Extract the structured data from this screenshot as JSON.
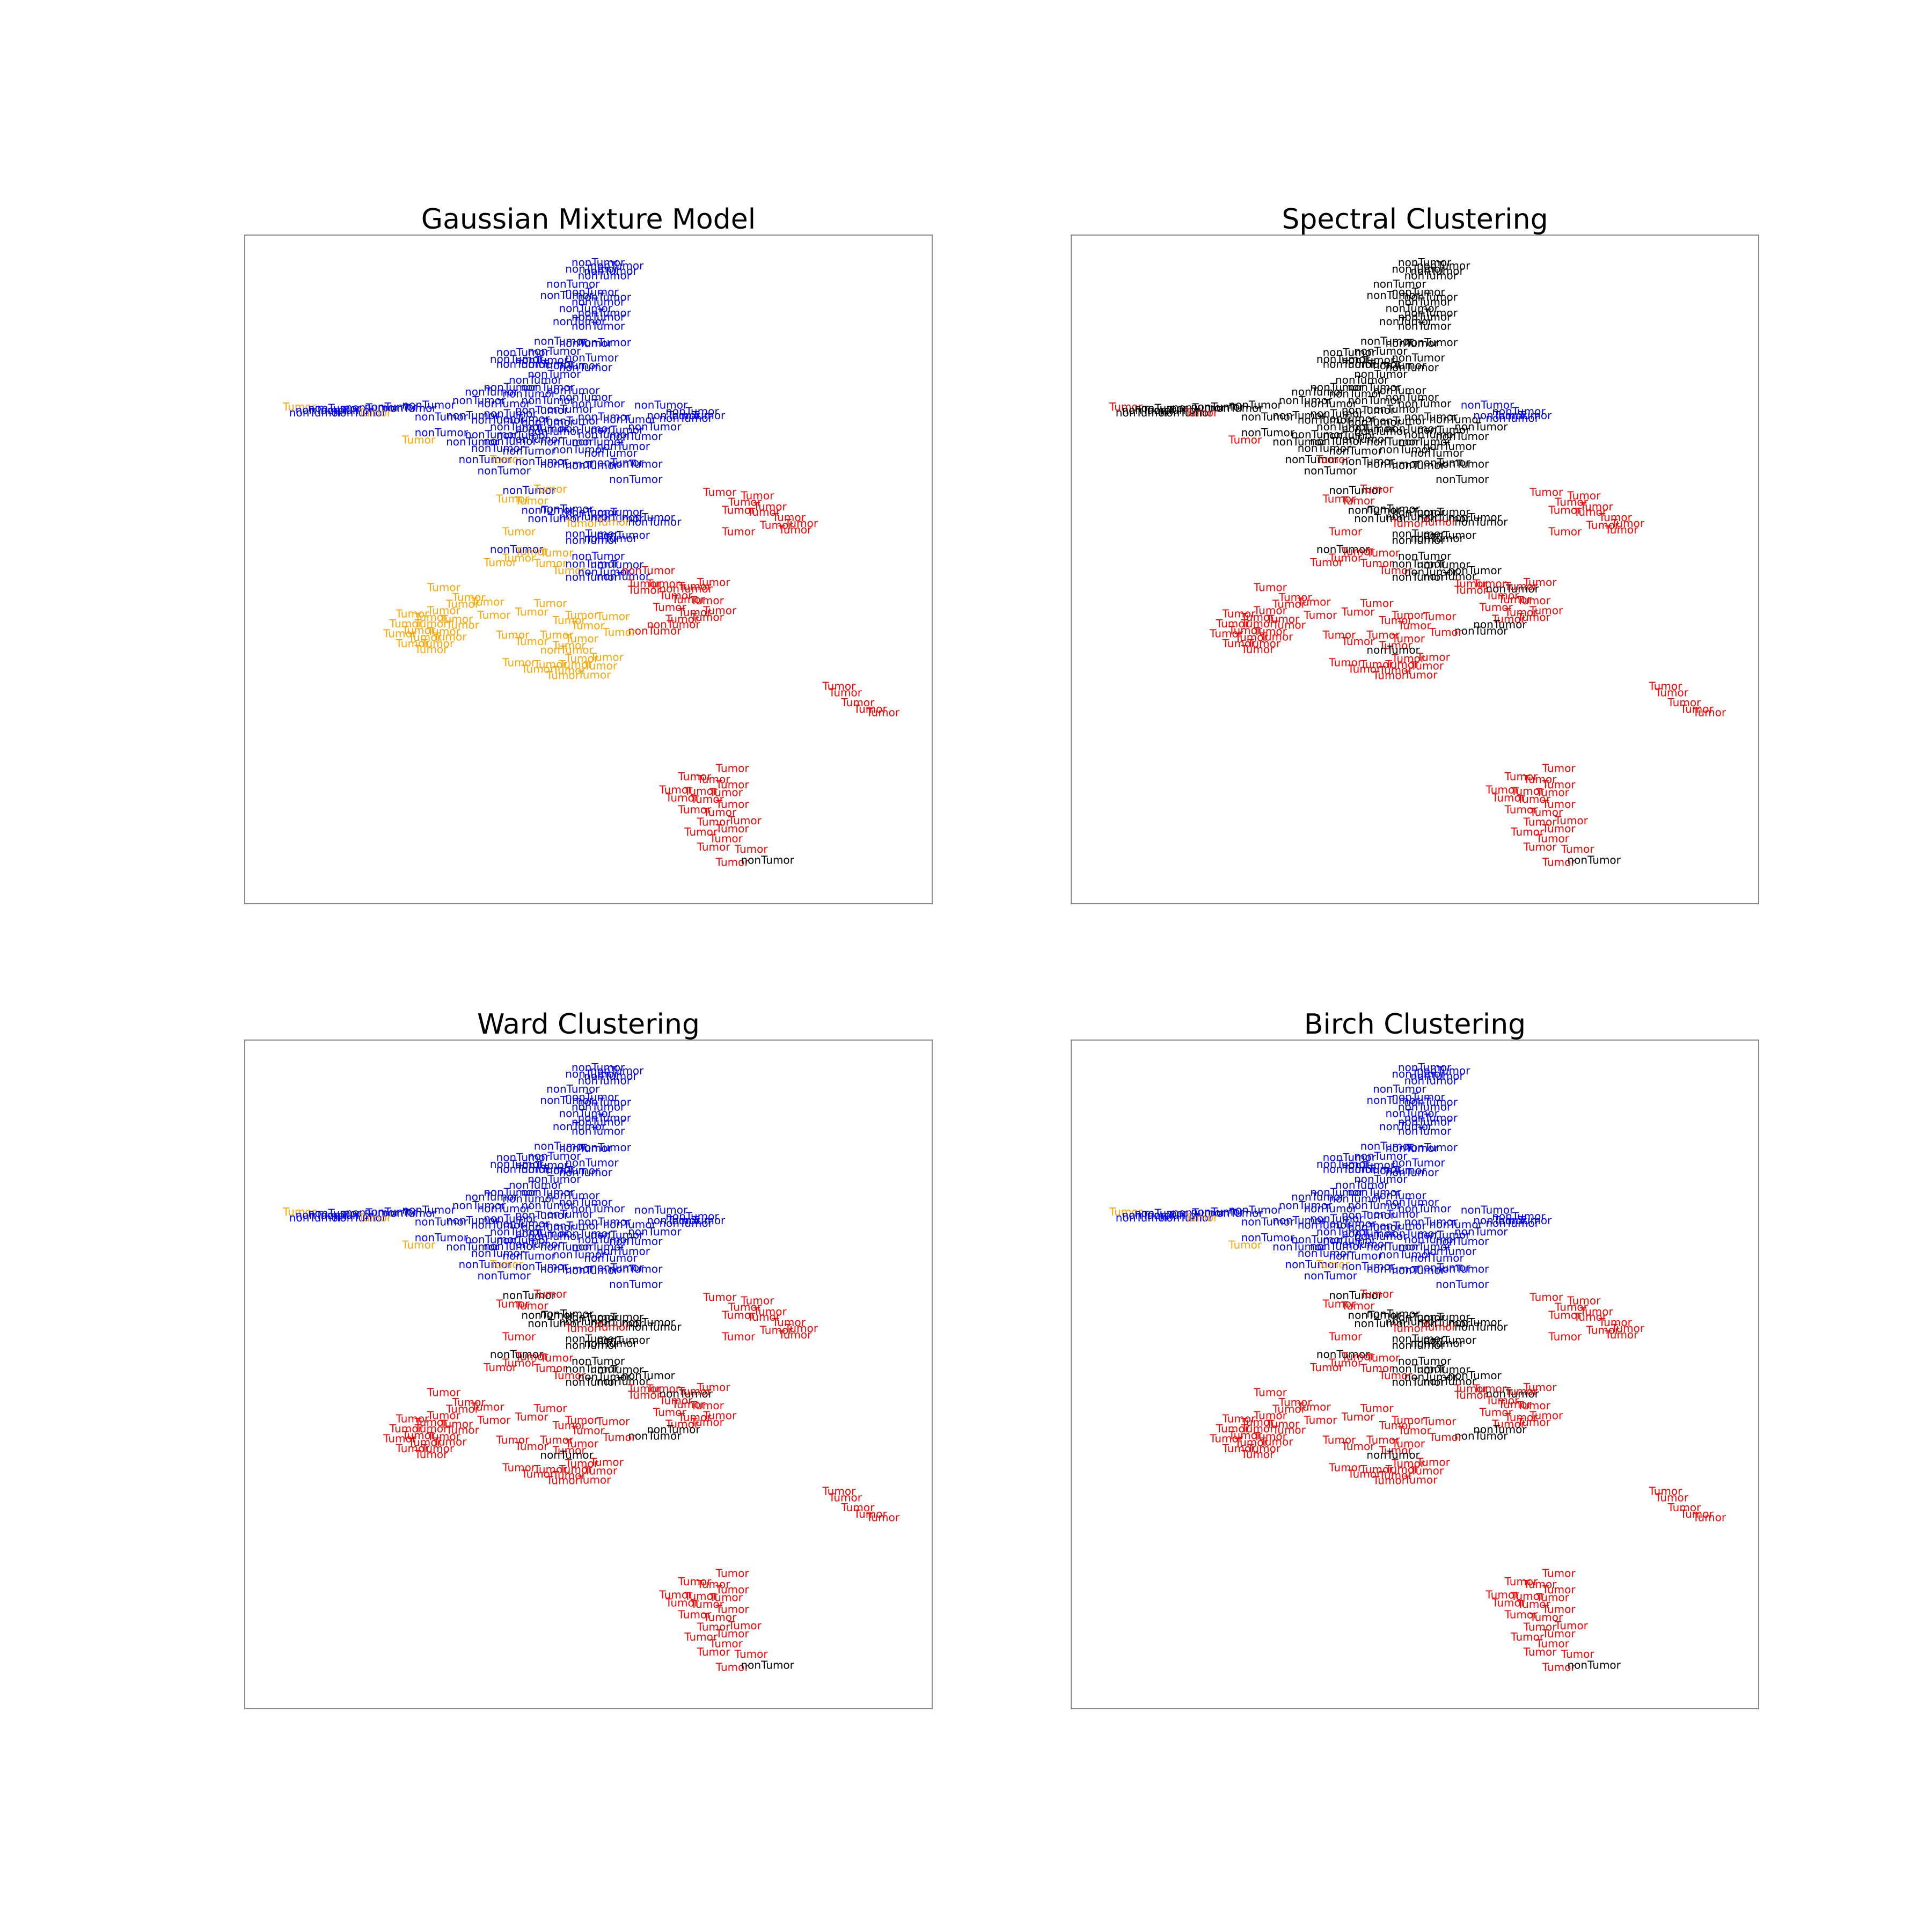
{
  "figure": {
    "background": "#ffffff"
  },
  "colors": {
    "Tumor_dark": "#ff0000",
    "Tumor_amber": "#ffa500",
    "nonTumor_blue": "#0000ff",
    "nonTumor_dark": "#000000"
  },
  "chart_data": [
    {
      "type": "scatter",
      "title": "Gaussian Mixture Model",
      "xlabel": "",
      "ylabel": "",
      "xlim": [
        0,
        100
      ],
      "ylim": [
        0,
        100
      ],
      "axes_visible": false,
      "grid": false,
      "legend": "none",
      "color_map": {
        "Tumor": "#ffa500",
        "nonTumor": "#0000ff",
        "Tumor_far": "#ff0000",
        "nonTumor_far": "#000000"
      },
      "points": []
    },
    {
      "type": "scatter",
      "title": "Spectral Clustering",
      "xlabel": "",
      "ylabel": "",
      "xlim": [
        0,
        100
      ],
      "ylim": [
        0,
        100
      ],
      "axes_visible": false,
      "grid": false,
      "legend": "none",
      "points": []
    },
    {
      "type": "scatter",
      "title": "Ward Clustering",
      "xlabel": "",
      "ylabel": "",
      "xlim": [
        0,
        100
      ],
      "ylim": [
        0,
        100
      ],
      "axes_visible": false,
      "grid": false,
      "legend": "none",
      "points": []
    },
    {
      "type": "scatter",
      "title": "Birch Clustering",
      "xlabel": "",
      "ylabel": "",
      "xlim": [
        0,
        100
      ],
      "ylim": [
        0,
        100
      ],
      "axes_visible": false,
      "grid": false,
      "legend": "none",
      "points": []
    }
  ],
  "base_points": [
    {
      "x": 52,
      "y": 96.5,
      "label": "nonTumor"
    },
    {
      "x": 55,
      "y": 96,
      "label": "nonTumor"
    },
    {
      "x": 51,
      "y": 95.5,
      "label": "nonTumor"
    },
    {
      "x": 54,
      "y": 95.2,
      "label": "nonTumor"
    },
    {
      "x": 53,
      "y": 94.5,
      "label": "nonTumor"
    },
    {
      "x": 48,
      "y": 93.2,
      "label": "nonTumor"
    },
    {
      "x": 47,
      "y": 91.5,
      "label": "nonTumor"
    },
    {
      "x": 51,
      "y": 92,
      "label": "nonTumor"
    },
    {
      "x": 53,
      "y": 91.2,
      "label": "nonTumor"
    },
    {
      "x": 52,
      "y": 90.5,
      "label": "nonTumor"
    },
    {
      "x": 50,
      "y": 89.5,
      "label": "nonTumor"
    },
    {
      "x": 53,
      "y": 88.8,
      "label": "nonTumor"
    },
    {
      "x": 52,
      "y": 88.2,
      "label": "nonTumor"
    },
    {
      "x": 49,
      "y": 87.5,
      "label": "nonTumor"
    },
    {
      "x": 52,
      "y": 86.8,
      "label": "nonTumor"
    },
    {
      "x": 46,
      "y": 84.5,
      "label": "nonTumor"
    },
    {
      "x": 50,
      "y": 84.2,
      "label": "nonTumor"
    },
    {
      "x": 53,
      "y": 84.3,
      "label": "nonTumor"
    },
    {
      "x": 40,
      "y": 82.8,
      "label": "nonTumor"
    },
    {
      "x": 45,
      "y": 83,
      "label": "nonTumor"
    },
    {
      "x": 39,
      "y": 81.8,
      "label": "nonTumor"
    },
    {
      "x": 43,
      "y": 81.6,
      "label": "nonTumor"
    },
    {
      "x": 51,
      "y": 82,
      "label": "nonTumor"
    },
    {
      "x": 40,
      "y": 81,
      "label": "nonTumor"
    },
    {
      "x": 44,
      "y": 81,
      "label": "nonTumor"
    },
    {
      "x": 48,
      "y": 80.8,
      "label": "nonTumor"
    },
    {
      "x": 50,
      "y": 80.5,
      "label": "nonTumor"
    },
    {
      "x": 45,
      "y": 79.5,
      "label": "nonTumor"
    },
    {
      "x": 42,
      "y": 78.6,
      "label": "nonTumor"
    },
    {
      "x": 38,
      "y": 77.5,
      "label": "nonTumor"
    },
    {
      "x": 44,
      "y": 77.5,
      "label": "nonTumor"
    },
    {
      "x": 48,
      "y": 77,
      "label": "nonTumor"
    },
    {
      "x": 35,
      "y": 76.8,
      "label": "nonTumor"
    },
    {
      "x": 41,
      "y": 76.5,
      "label": "nonTumor"
    },
    {
      "x": 33,
      "y": 75.5,
      "label": "nonTumor"
    },
    {
      "x": 44,
      "y": 75.5,
      "label": "nonTumor"
    },
    {
      "x": 50,
      "y": 76,
      "label": "nonTumor"
    },
    {
      "x": 52,
      "y": 75,
      "label": "nonTumor"
    },
    {
      "x": 37,
      "y": 75,
      "label": "nonTumor"
    },
    {
      "x": 43,
      "y": 74,
      "label": "nonTumor"
    },
    {
      "x": 47,
      "y": 74.2,
      "label": "nonTumor"
    },
    {
      "x": 38,
      "y": 73.5,
      "label": "nonTumor"
    },
    {
      "x": 6,
      "y": 74.5,
      "label": "Tumor"
    },
    {
      "x": 8,
      "y": 74,
      "label": "nonTumor"
    },
    {
      "x": 10,
      "y": 74.3,
      "label": "nonTumor"
    },
    {
      "x": 7,
      "y": 73.6,
      "label": "nonTumor"
    },
    {
      "x": 12,
      "y": 74,
      "label": "nonTumor"
    },
    {
      "x": 16,
      "y": 74.4,
      "label": "nonTumor"
    },
    {
      "x": 19,
      "y": 74.5,
      "label": "nonTumor"
    },
    {
      "x": 22,
      "y": 74.3,
      "label": "nonTumor"
    },
    {
      "x": 25,
      "y": 74.8,
      "label": "nonTumor"
    },
    {
      "x": 14,
      "y": 73.6,
      "label": "nonTumor"
    },
    {
      "x": 18,
      "y": 73.6,
      "label": "Tumor"
    },
    {
      "x": 27,
      "y": 73,
      "label": "nonTumor"
    },
    {
      "x": 32,
      "y": 73.2,
      "label": "nonTumor"
    },
    {
      "x": 36,
      "y": 72.5,
      "label": "nonTumor"
    },
    {
      "x": 40,
      "y": 72.7,
      "label": "nonTumor"
    },
    {
      "x": 44,
      "y": 72.2,
      "label": "nonTumor"
    },
    {
      "x": 48,
      "y": 72.4,
      "label": "nonTumor"
    },
    {
      "x": 53,
      "y": 73,
      "label": "nonTumor"
    },
    {
      "x": 57,
      "y": 72.6,
      "label": "nonTumor"
    },
    {
      "x": 39,
      "y": 71.5,
      "label": "nonTumor"
    },
    {
      "x": 43,
      "y": 71.2,
      "label": "nonTumor"
    },
    {
      "x": 50,
      "y": 71.2,
      "label": "nonTumor"
    },
    {
      "x": 55,
      "y": 71,
      "label": "nonTumor"
    },
    {
      "x": 61,
      "y": 71.5,
      "label": "nonTumor"
    },
    {
      "x": 27,
      "y": 70.6,
      "label": "nonTumor"
    },
    {
      "x": 35,
      "y": 70.3,
      "label": "nonTumor"
    },
    {
      "x": 40,
      "y": 70.2,
      "label": "nonTumor"
    },
    {
      "x": 45,
      "y": 70.8,
      "label": "nonTumor"
    },
    {
      "x": 53,
      "y": 70.3,
      "label": "nonTumor"
    },
    {
      "x": 58,
      "y": 70,
      "label": "nonTumor"
    },
    {
      "x": 25,
      "y": 69.5,
      "label": "Tumor"
    },
    {
      "x": 32,
      "y": 69.2,
      "label": "nonTumor"
    },
    {
      "x": 38,
      "y": 69.3,
      "label": "nonTumor"
    },
    {
      "x": 42,
      "y": 69.6,
      "label": "nonTumor"
    },
    {
      "x": 47,
      "y": 69.2,
      "label": "nonTumor"
    },
    {
      "x": 52,
      "y": 69.2,
      "label": "nonTumor"
    },
    {
      "x": 56,
      "y": 68.5,
      "label": "nonTumor"
    },
    {
      "x": 36,
      "y": 68.2,
      "label": "nonTumor"
    },
    {
      "x": 41,
      "y": 67.8,
      "label": "nonTumor"
    },
    {
      "x": 49,
      "y": 68,
      "label": "nonTumor"
    },
    {
      "x": 54,
      "y": 67.5,
      "label": "nonTumor"
    },
    {
      "x": 34,
      "y": 66.5,
      "label": "nonTumor"
    },
    {
      "x": 39,
      "y": 66.5,
      "label": "Tumor"
    },
    {
      "x": 43,
      "y": 66.2,
      "label": "nonTumor"
    },
    {
      "x": 47,
      "y": 65.8,
      "label": "nonTumor"
    },
    {
      "x": 51,
      "y": 65.6,
      "label": "nonTumor"
    },
    {
      "x": 55,
      "y": 66,
      "label": "nonTumor"
    },
    {
      "x": 58,
      "y": 65.8,
      "label": "nonTumor"
    },
    {
      "x": 37,
      "y": 64.8,
      "label": "nonTumor"
    },
    {
      "x": 58,
      "y": 63.5,
      "label": "nonTumor"
    },
    {
      "x": 62,
      "y": 74.8,
      "label": "nonTumor"
    },
    {
      "x": 67,
      "y": 73.8,
      "label": "nonTumor"
    },
    {
      "x": 64,
      "y": 73.2,
      "label": "nonTumor"
    },
    {
      "x": 68,
      "y": 73.2,
      "label": "nonTumor"
    },
    {
      "x": 66,
      "y": 72.8,
      "label": "nonTumor"
    },
    {
      "x": 41,
      "y": 61.8,
      "label": "nonTumor"
    },
    {
      "x": 46,
      "y": 62,
      "label": "Tumor"
    },
    {
      "x": 40,
      "y": 60.5,
      "label": "Tumor"
    },
    {
      "x": 43,
      "y": 60.2,
      "label": "Tumor"
    },
    {
      "x": 47,
      "y": 59,
      "label": "nonTumor"
    },
    {
      "x": 44,
      "y": 58.8,
      "label": "nonTumor"
    },
    {
      "x": 51,
      "y": 58.4,
      "label": "nonTumor"
    },
    {
      "x": 55,
      "y": 58.5,
      "label": "nonTumor"
    },
    {
      "x": 45,
      "y": 57.5,
      "label": "nonTumor"
    },
    {
      "x": 50,
      "y": 57.8,
      "label": "nonTumor"
    },
    {
      "x": 55,
      "y": 57.5,
      "label": "nonTumor"
    },
    {
      "x": 60,
      "y": 57.7,
      "label": "nonTumor"
    },
    {
      "x": 61,
      "y": 57,
      "label": "nonTumor"
    },
    {
      "x": 56,
      "y": 57,
      "label": "Tumor"
    },
    {
      "x": 51,
      "y": 56.8,
      "label": "Tumor"
    },
    {
      "x": 41,
      "y": 55.5,
      "label": "Tumor"
    },
    {
      "x": 51,
      "y": 55.2,
      "label": "nonTumor"
    },
    {
      "x": 54,
      "y": 54.5,
      "label": "nonTumor"
    },
    {
      "x": 56,
      "y": 55,
      "label": "nonTumor"
    },
    {
      "x": 51,
      "y": 54.2,
      "label": "nonTumor"
    },
    {
      "x": 39,
      "y": 52.8,
      "label": "nonTumor"
    },
    {
      "x": 43,
      "y": 52.5,
      "label": "Tumor"
    },
    {
      "x": 47,
      "y": 52.3,
      "label": "Tumor"
    },
    {
      "x": 41,
      "y": 51.5,
      "label": "Tumor"
    },
    {
      "x": 52,
      "y": 51.8,
      "label": "nonTumor"
    },
    {
      "x": 38,
      "y": 50.8,
      "label": "Tumor"
    },
    {
      "x": 46,
      "y": 50.7,
      "label": "Tumor"
    },
    {
      "x": 51,
      "y": 50.6,
      "label": "nonTumor"
    },
    {
      "x": 55,
      "y": 50.5,
      "label": "nonTumor"
    },
    {
      "x": 49,
      "y": 49.6,
      "label": "Tumor"
    },
    {
      "x": 53,
      "y": 49.4,
      "label": "nonTumor"
    },
    {
      "x": 56,
      "y": 48.7,
      "label": "nonTumor"
    },
    {
      "x": 51,
      "y": 48.6,
      "label": "nonTumor"
    },
    {
      "x": 60,
      "y": 49.6,
      "label": "nonTumor"
    },
    {
      "x": 61,
      "y": 47.6,
      "label": "Tumor"
    },
    {
      "x": 64,
      "y": 47.6,
      "label": "Tumor"
    },
    {
      "x": 61,
      "y": 46.6,
      "label": "Tumor"
    },
    {
      "x": 66,
      "y": 46.8,
      "label": "nonTumor"
    },
    {
      "x": 69,
      "y": 47.2,
      "label": "Tumor"
    },
    {
      "x": 72,
      "y": 47.8,
      "label": "Tumor"
    },
    {
      "x": 66,
      "y": 45.8,
      "label": "Tumor"
    },
    {
      "x": 68,
      "y": 45.2,
      "label": "Tumor"
    },
    {
      "x": 71,
      "y": 45,
      "label": "Tumor"
    },
    {
      "x": 65,
      "y": 44,
      "label": "Tumor"
    },
    {
      "x": 69,
      "y": 43.2,
      "label": "Tumor"
    },
    {
      "x": 73,
      "y": 43.5,
      "label": "Tumor"
    },
    {
      "x": 67,
      "y": 42.2,
      "label": "Tumor"
    },
    {
      "x": 71,
      "y": 42.5,
      "label": "Tumor"
    },
    {
      "x": 64,
      "y": 41.4,
      "label": "nonTumor"
    },
    {
      "x": 61,
      "y": 40.4,
      "label": "nonTumor"
    },
    {
      "x": 57,
      "y": 40.2,
      "label": "Tumor"
    },
    {
      "x": 73,
      "y": 61.5,
      "label": "Tumor"
    },
    {
      "x": 79,
      "y": 61,
      "label": "Tumor"
    },
    {
      "x": 77,
      "y": 60,
      "label": "Tumor"
    },
    {
      "x": 81,
      "y": 59.3,
      "label": "Tumor"
    },
    {
      "x": 76,
      "y": 58.8,
      "label": "Tumor"
    },
    {
      "x": 80,
      "y": 58.5,
      "label": "Tumor"
    },
    {
      "x": 84,
      "y": 57.7,
      "label": "Tumor"
    },
    {
      "x": 86,
      "y": 56.8,
      "label": "Tumor"
    },
    {
      "x": 82,
      "y": 56.5,
      "label": "Tumor"
    },
    {
      "x": 76,
      "y": 55.5,
      "label": "Tumor"
    },
    {
      "x": 85,
      "y": 55.8,
      "label": "Tumor"
    },
    {
      "x": 29,
      "y": 47,
      "label": "Tumor"
    },
    {
      "x": 33,
      "y": 45.5,
      "label": "Tumor"
    },
    {
      "x": 36,
      "y": 44.8,
      "label": "Tumor"
    },
    {
      "x": 32,
      "y": 44.5,
      "label": "Tumor"
    },
    {
      "x": 29,
      "y": 43.5,
      "label": "Tumor"
    },
    {
      "x": 24,
      "y": 43,
      "label": "Tumor"
    },
    {
      "x": 27,
      "y": 42.5,
      "label": "Tumor"
    },
    {
      "x": 31,
      "y": 42.2,
      "label": "Tumor"
    },
    {
      "x": 37,
      "y": 42.8,
      "label": "Tumor"
    },
    {
      "x": 23,
      "y": 41.5,
      "label": "Tumor"
    },
    {
      "x": 27,
      "y": 41.5,
      "label": "Tumor"
    },
    {
      "x": 32,
      "y": 41.3,
      "label": "Tumor"
    },
    {
      "x": 25,
      "y": 40.5,
      "label": "Tumor"
    },
    {
      "x": 29,
      "y": 40.3,
      "label": "Tumor"
    },
    {
      "x": 22,
      "y": 40,
      "label": "Tumor"
    },
    {
      "x": 26,
      "y": 39.4,
      "label": "Tumor"
    },
    {
      "x": 30,
      "y": 39.5,
      "label": "Tumor"
    },
    {
      "x": 24,
      "y": 38.5,
      "label": "Tumor"
    },
    {
      "x": 28,
      "y": 38.5,
      "label": "Tumor"
    },
    {
      "x": 27,
      "y": 37.6,
      "label": "Tumor"
    },
    {
      "x": 46,
      "y": 44.6,
      "label": "Tumor"
    },
    {
      "x": 43,
      "y": 43.3,
      "label": "Tumor"
    },
    {
      "x": 51,
      "y": 42.8,
      "label": "Tumor"
    },
    {
      "x": 56,
      "y": 42.6,
      "label": "Tumor"
    },
    {
      "x": 49,
      "y": 42,
      "label": "Tumor"
    },
    {
      "x": 52,
      "y": 41.2,
      "label": "Tumor"
    },
    {
      "x": 40,
      "y": 39.8,
      "label": "Tumor"
    },
    {
      "x": 47,
      "y": 39.8,
      "label": "Tumor"
    },
    {
      "x": 51,
      "y": 39.2,
      "label": "Tumor"
    },
    {
      "x": 43,
      "y": 38.8,
      "label": "Tumor"
    },
    {
      "x": 49,
      "y": 38.2,
      "label": "Tumor"
    },
    {
      "x": 47,
      "y": 37.5,
      "label": "nonTumor"
    },
    {
      "x": 51,
      "y": 36.2,
      "label": "Tumor"
    },
    {
      "x": 55,
      "y": 36.4,
      "label": "Tumor"
    },
    {
      "x": 41,
      "y": 35.6,
      "label": "Tumor"
    },
    {
      "x": 46,
      "y": 35.3,
      "label": "Tumor"
    },
    {
      "x": 50,
      "y": 35.3,
      "label": "Tumor"
    },
    {
      "x": 54,
      "y": 35.1,
      "label": "Tumor"
    },
    {
      "x": 44,
      "y": 34.6,
      "label": "Tumor"
    },
    {
      "x": 49,
      "y": 34.4,
      "label": "Tumor"
    },
    {
      "x": 48,
      "y": 33.6,
      "label": "Tumor"
    },
    {
      "x": 53,
      "y": 33.7,
      "label": "Tumor"
    },
    {
      "x": 92,
      "y": 32,
      "label": "Tumor"
    },
    {
      "x": 93,
      "y": 31,
      "label": "Tumor"
    },
    {
      "x": 95,
      "y": 29.5,
      "label": "Tumor"
    },
    {
      "x": 97,
      "y": 28.5,
      "label": "Tumor"
    },
    {
      "x": 99,
      "y": 28,
      "label": "Tumor"
    },
    {
      "x": 75,
      "y": 19.5,
      "label": "Tumor"
    },
    {
      "x": 69,
      "y": 18.2,
      "label": "Tumor"
    },
    {
      "x": 72,
      "y": 17.8,
      "label": "Tumor"
    },
    {
      "x": 75,
      "y": 17,
      "label": "Tumor"
    },
    {
      "x": 66,
      "y": 16.2,
      "label": "Tumor"
    },
    {
      "x": 70,
      "y": 16,
      "label": "Tumor"
    },
    {
      "x": 74,
      "y": 15.8,
      "label": "Tumor"
    },
    {
      "x": 67,
      "y": 15,
      "label": "Tumor"
    },
    {
      "x": 71,
      "y": 14.8,
      "label": "Tumor"
    },
    {
      "x": 75,
      "y": 14,
      "label": "Tumor"
    },
    {
      "x": 69,
      "y": 13.2,
      "label": "Tumor"
    },
    {
      "x": 73,
      "y": 12.8,
      "label": "Tumor"
    },
    {
      "x": 77,
      "y": 11.5,
      "label": "Tumor"
    },
    {
      "x": 72,
      "y": 11.3,
      "label": "Tumor"
    },
    {
      "x": 75,
      "y": 10.3,
      "label": "Tumor"
    },
    {
      "x": 70,
      "y": 9.8,
      "label": "Tumor"
    },
    {
      "x": 74,
      "y": 8.8,
      "label": "Tumor"
    },
    {
      "x": 72,
      "y": 7.5,
      "label": "Tumor"
    },
    {
      "x": 78,
      "y": 7.2,
      "label": "Tumor"
    },
    {
      "x": 75,
      "y": 5.2,
      "label": "Tumor"
    },
    {
      "x": 79,
      "y": 5.5,
      "label": "nonTumor"
    }
  ],
  "panel_titles": [
    "Gaussian Mixture Model",
    "Spectral Clustering",
    "Ward Clustering",
    "Birch Clustering"
  ]
}
